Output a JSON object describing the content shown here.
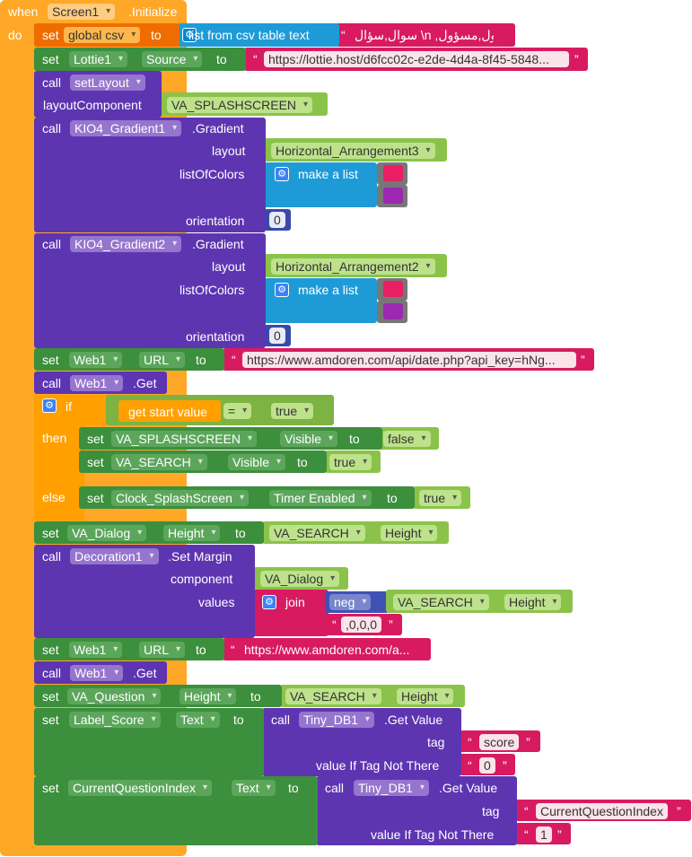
{
  "event": {
    "when": "when",
    "component": "Screen1",
    "event_name": ".Initialize",
    "do": "do"
  },
  "kw": {
    "set": "set",
    "call": "call",
    "to": "to",
    "if": "if",
    "then": "then",
    "else": "else"
  },
  "rows": {
    "r1": {
      "var": "global csv",
      "fn": "list from csv table  text",
      "str": "سوال,سؤال \\n ,مسول,مسؤول..."
    },
    "r2": {
      "comp": "Lottie1",
      "prop": "Source",
      "str": "https://lottie.host/d6fcc02c-e2de-4d4a-8f45-5848..."
    },
    "r3": {
      "proc": "setLayout",
      "param": "layoutComponent",
      "arg": "VA_SPLASHSCREEN"
    },
    "r4": {
      "comp": "KIO4_Gradient1",
      "method": ".Gradient",
      "p1": "layout",
      "arg1": "Horizontal_Arrangement3",
      "p2": "listOfColors",
      "make": "make a list",
      "p3": "orientation",
      "num": "0",
      "c1": "#e91e63",
      "c2": "#9c27b0"
    },
    "r5": {
      "comp": "KIO4_Gradient2",
      "method": ".Gradient",
      "p1": "layout",
      "arg1": "Horizontal_Arrangement2",
      "p2": "listOfColors",
      "make": "make a list",
      "p3": "orientation",
      "num": "0",
      "c1": "#e91e63",
      "c2": "#9c27b0"
    },
    "r6": {
      "comp": "Web1",
      "prop": "URL",
      "str": "https://www.amdoren.com/api/date.php?api_key=hNg..."
    },
    "r7": {
      "comp": "Web1",
      "method": ".Get"
    },
    "r8": {
      "cond": "get start value",
      "op": "=",
      "val": "true",
      "t1": {
        "comp": "VA_SPLASHSCREEN",
        "prop": "Visible",
        "val": "false"
      },
      "t2": {
        "comp": "VA_SEARCH",
        "prop": "Visible",
        "val": "true"
      },
      "e1": {
        "comp": "Clock_SplashScreen",
        "prop": "Timer Enabled",
        "val": "true"
      }
    },
    "r9": {
      "comp": "VA_Dialog",
      "prop": "Height",
      "src": "VA_SEARCH",
      "srcprop": "Height"
    },
    "r10": {
      "comp": "Decoration1",
      "method": ".Set Margin",
      "p1": "component",
      "arg1": "VA_Dialog",
      "p2": "values",
      "join": "join",
      "neg": "neg",
      "src": "VA_SEARCH",
      "srcprop": "Height",
      "str": ",0,0,0"
    },
    "r11": {
      "comp": "Web1",
      "prop": "URL",
      "str": "https://www.amdoren.com/a..."
    },
    "r12": {
      "comp": "Web1",
      "method": ".Get"
    },
    "r13": {
      "comp": "VA_Question",
      "prop": "Height",
      "src": "VA_SEARCH",
      "srcprop": "Height"
    },
    "r14": {
      "comp": "Label_Score",
      "prop": "Text",
      "db": "Tiny_DB1",
      "method": ".Get Value",
      "p1": "tag",
      "tag": "score",
      "p2": "value If Tag Not There",
      "def": "0"
    },
    "r15": {
      "comp": "CurrentQuestionIndex",
      "prop": "Text",
      "db": "Tiny_DB1",
      "method": ".Get Value",
      "p1": "tag",
      "tag": "CurrentQuestionIndex",
      "p2": "value If Tag Not There",
      "def": "1"
    }
  },
  "colors": {
    "event": "#ffa726",
    "procedure": "#5e35b1",
    "setter": "#3c8f3c",
    "getter": "#8bc34a",
    "text": "#d81b60",
    "list": "#1e9bd7",
    "math": "#3f51b5",
    "control": "#ffa000"
  }
}
